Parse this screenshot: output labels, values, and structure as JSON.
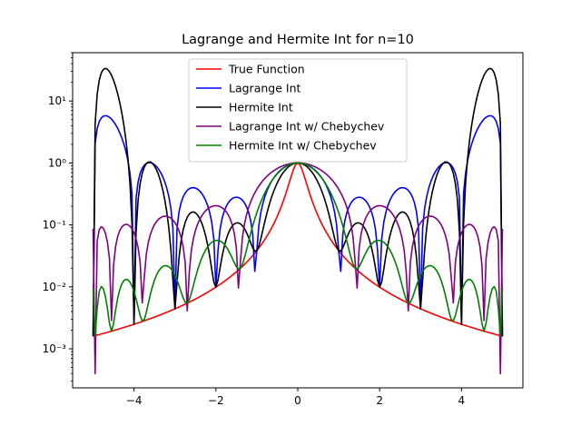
{
  "chart_data": {
    "type": "line",
    "title": "Lagrange and Hermite Int for n=10",
    "xlabel": "",
    "ylabel": "",
    "x_range": [
      -5.0,
      5.0
    ],
    "xlim": [
      -5.5,
      5.5
    ],
    "ylim_log10": [
      -3.63,
      1.78
    ],
    "y_scale": "log",
    "x_ticks": [
      -4,
      -2,
      0,
      2,
      4
    ],
    "x_tick_labels": [
      "−4",
      "−2",
      "0",
      "2",
      "4"
    ],
    "y_ticks": [
      0.001,
      0.01,
      0.1,
      1,
      10
    ],
    "y_tick_labels": [
      "10⁻³",
      "10⁻²",
      "10⁻¹",
      "10⁰",
      "10¹"
    ],
    "grid": false,
    "legend_position": "top-center",
    "series": [
      {
        "name": "True Function",
        "color": "#ff0000",
        "formula": "1/(1+25x^2)"
      },
      {
        "name": "Lagrange Int",
        "color": "#0000ff",
        "method": "lagrange",
        "nodes": "equispaced"
      },
      {
        "name": "Hermite Int",
        "color": "#000000",
        "method": "hermite",
        "nodes": "equispaced"
      },
      {
        "name": "Lagrange Int w/ Chebychev",
        "color": "#800080",
        "method": "lagrange",
        "nodes": "chebyshev"
      },
      {
        "name": "Hermite Int w/ Chebychev",
        "color": "#008000",
        "method": "hermite",
        "nodes": "chebyshev"
      }
    ],
    "n": 10,
    "samples": 201
  }
}
